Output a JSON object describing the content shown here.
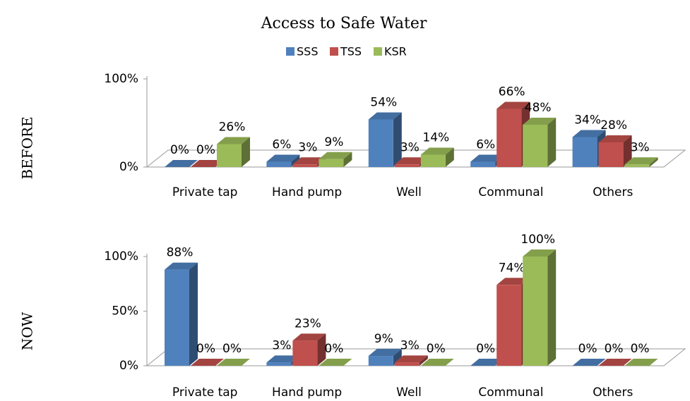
{
  "chart_data": [
    {
      "type": "bar3d",
      "title": "Access to Safe Water",
      "ylabel": "BEFORE",
      "categories": [
        "Private tap",
        "Hand pump",
        "Well",
        "Communal",
        "Others"
      ],
      "ylim": [
        0,
        100
      ],
      "yticks": [
        {
          "value": 0,
          "label": "0%"
        },
        {
          "value": 100,
          "label": "100%"
        }
      ],
      "series": [
        {
          "name": "SSS",
          "color": "#4f81bd",
          "values": [
            0,
            6,
            54,
            6,
            34
          ],
          "value_labels": [
            "0%",
            "6%",
            "54%",
            "6%",
            "34%"
          ]
        },
        {
          "name": "TSS",
          "color": "#c0504d",
          "values": [
            0,
            3,
            3,
            66,
            28
          ],
          "value_labels": [
            "0%",
            "3%",
            "3%",
            "66%",
            "28%"
          ]
        },
        {
          "name": "KSR",
          "color": "#9bbb59",
          "values": [
            26,
            9,
            14,
            48,
            3
          ],
          "value_labels": [
            "26%",
            "9%",
            "14%",
            "48%",
            "3%"
          ]
        }
      ]
    },
    {
      "type": "bar3d",
      "ylabel": "NOW",
      "categories": [
        "Private tap",
        "Hand pump",
        "Well",
        "Communal",
        "Others"
      ],
      "ylim": [
        0,
        100
      ],
      "yticks": [
        {
          "value": 0,
          "label": "0%"
        },
        {
          "value": 50,
          "label": "50%"
        },
        {
          "value": 100,
          "label": "100%"
        }
      ],
      "series": [
        {
          "color": "#4f81bd",
          "values": [
            88,
            3,
            9,
            0,
            0
          ],
          "value_labels": [
            "88%",
            "3%",
            "9%",
            "0%",
            "0%"
          ]
        },
        {
          "color": "#c0504d",
          "values": [
            0,
            23,
            3,
            74,
            0
          ],
          "value_labels": [
            "0%",
            "23%",
            "3%",
            "74%",
            "0%"
          ]
        },
        {
          "color": "#9bbb59",
          "values": [
            0,
            0,
            0,
            100,
            0
          ],
          "value_labels": [
            "0%",
            "0%",
            "0%",
            "100%",
            "0%"
          ]
        }
      ]
    }
  ]
}
